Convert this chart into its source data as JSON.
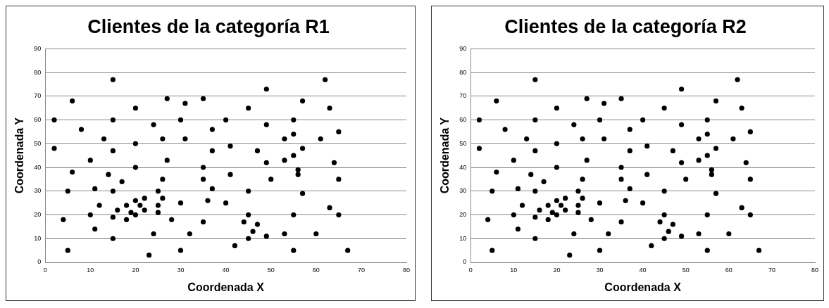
{
  "chart_data": [
    {
      "type": "scatter",
      "title": "Clientes de la categoría R1",
      "xlabel": "Coordenada X",
      "ylabel": "Coordenada Y",
      "color": "#000000",
      "marker": "circle",
      "grid": "y",
      "xlim": [
        0,
        80
      ],
      "ylim": [
        0,
        90
      ],
      "xticks": [
        0,
        10,
        20,
        30,
        40,
        50,
        60,
        70,
        80
      ],
      "yticks": [
        0,
        10,
        20,
        30,
        40,
        50,
        60,
        70,
        80,
        90
      ],
      "x": [
        2,
        2,
        4,
        5,
        5,
        6,
        6,
        8,
        10,
        10,
        11,
        11,
        12,
        13,
        14,
        15,
        15,
        15,
        15,
        15,
        15,
        16,
        17,
        18,
        18,
        19,
        20,
        20,
        20,
        20,
        20,
        21,
        22,
        22,
        23,
        24,
        24,
        25,
        25,
        25,
        26,
        26,
        26,
        27,
        27,
        28,
        30,
        30,
        30,
        31,
        31,
        32,
        35,
        35,
        35,
        35,
        36,
        37,
        37,
        37,
        40,
        40,
        41,
        41,
        42,
        44,
        45,
        45,
        45,
        45,
        46,
        47,
        47,
        49,
        49,
        49,
        49,
        50,
        53,
        53,
        53,
        55,
        55,
        55,
        55,
        55,
        56,
        56,
        57,
        57,
        57,
        60,
        61,
        62,
        63,
        63,
        64,
        65,
        65,
        65,
        67
      ],
      "values": [
        60,
        48,
        18,
        30,
        5,
        68,
        38,
        56,
        43,
        20,
        31,
        14,
        24,
        52,
        37,
        77,
        60,
        47,
        30,
        19,
        10,
        22,
        34,
        24,
        18,
        21,
        65,
        50,
        40,
        26,
        20,
        24,
        27,
        22,
        3,
        58,
        12,
        30,
        24,
        21,
        52,
        35,
        27,
        69,
        43,
        18,
        60,
        25,
        5,
        67,
        52,
        12,
        69,
        40,
        35,
        17,
        26,
        56,
        47,
        31,
        60,
        25,
        49,
        37,
        7,
        17,
        65,
        30,
        20,
        10,
        13,
        47,
        16,
        73,
        58,
        42,
        11,
        35,
        52,
        43,
        12,
        60,
        54,
        45,
        20,
        5,
        39,
        37,
        68,
        48,
        29,
        12,
        52,
        77,
        65,
        23,
        42,
        55,
        35,
        20,
        5
      ]
    },
    {
      "type": "scatter",
      "title": "Clientes de la categoría R2",
      "xlabel": "Coordenada X",
      "ylabel": "Coordenada Y",
      "color": "#000000",
      "marker": "circle",
      "grid": "y",
      "xlim": [
        0,
        80
      ],
      "ylim": [
        0,
        90
      ],
      "xticks": [
        0,
        10,
        20,
        30,
        40,
        50,
        60,
        70,
        80
      ],
      "yticks": [
        0,
        10,
        20,
        30,
        40,
        50,
        60,
        70,
        80,
        90
      ],
      "x": [
        2,
        2,
        4,
        5,
        5,
        6,
        6,
        8,
        10,
        10,
        11,
        11,
        12,
        13,
        14,
        15,
        15,
        15,
        15,
        15,
        15,
        16,
        17,
        18,
        18,
        19,
        20,
        20,
        20,
        20,
        20,
        21,
        22,
        22,
        23,
        24,
        24,
        25,
        25,
        25,
        26,
        26,
        26,
        27,
        27,
        28,
        30,
        30,
        30,
        31,
        31,
        32,
        35,
        35,
        35,
        35,
        36,
        37,
        37,
        37,
        40,
        40,
        41,
        41,
        42,
        44,
        45,
        45,
        45,
        45,
        46,
        47,
        47,
        49,
        49,
        49,
        49,
        50,
        53,
        53,
        53,
        55,
        55,
        55,
        55,
        55,
        56,
        56,
        57,
        57,
        57,
        60,
        61,
        62,
        63,
        63,
        64,
        65,
        65,
        65,
        67
      ],
      "values": [
        60,
        48,
        18,
        30,
        5,
        68,
        38,
        56,
        43,
        20,
        31,
        14,
        24,
        52,
        37,
        77,
        60,
        47,
        30,
        19,
        10,
        22,
        34,
        24,
        18,
        21,
        65,
        50,
        40,
        26,
        20,
        24,
        27,
        22,
        3,
        58,
        12,
        30,
        24,
        21,
        52,
        35,
        27,
        69,
        43,
        18,
        60,
        25,
        5,
        67,
        52,
        12,
        69,
        40,
        35,
        17,
        26,
        56,
        47,
        31,
        60,
        25,
        49,
        37,
        7,
        17,
        65,
        30,
        20,
        10,
        13,
        47,
        16,
        73,
        58,
        42,
        11,
        35,
        52,
        43,
        12,
        60,
        54,
        45,
        20,
        5,
        39,
        37,
        68,
        48,
        29,
        12,
        52,
        77,
        65,
        23,
        42,
        55,
        35,
        20,
        5
      ]
    }
  ]
}
